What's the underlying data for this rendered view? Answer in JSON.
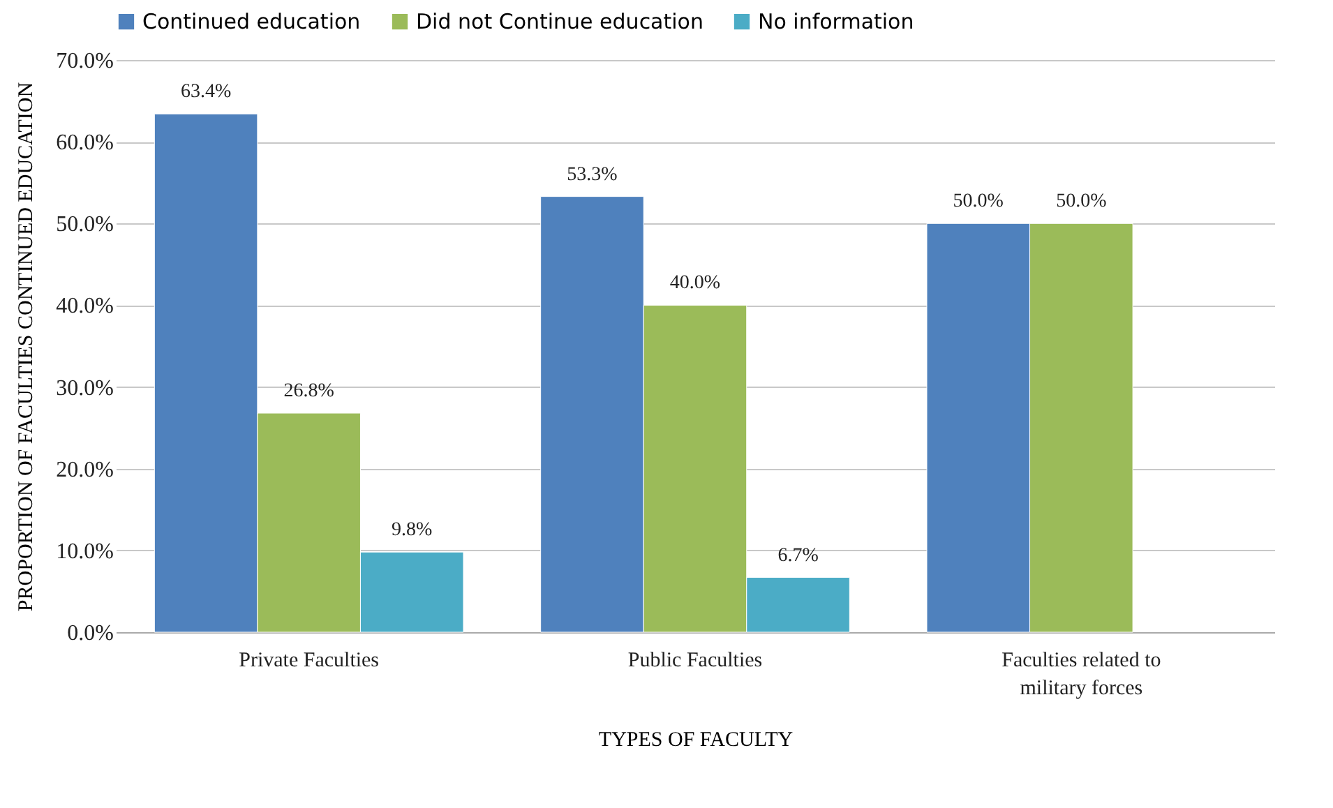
{
  "chart_data": {
    "type": "bar",
    "xlabel": "TYPES OF FACULTY",
    "ylabel": "PROPORTION OF FACULTIES CONTINUED EDUCATION",
    "categories": [
      "Private Faculties",
      "Public Faculties",
      "Faculties related to military forces"
    ],
    "series": [
      {
        "name": "Continued education",
        "color": "#4f81bd",
        "values": [
          63.4,
          53.3,
          50.0
        ],
        "value_labels": [
          "63.4%",
          "53.3%",
          "50.0%"
        ]
      },
      {
        "name": "Did not Continue education",
        "color": "#9bbb59",
        "values": [
          26.8,
          40.0,
          50.0
        ],
        "value_labels": [
          "26.8%",
          "40.0%",
          "50.0%"
        ]
      },
      {
        "name": "No information",
        "color": "#4bacc6",
        "values": [
          9.8,
          6.7,
          null
        ],
        "value_labels": [
          "9.8%",
          "6.7%",
          null
        ]
      }
    ],
    "ylim": [
      0,
      70
    ],
    "yticks": [
      {
        "value": 0,
        "label": "0.0%"
      },
      {
        "value": 10,
        "label": "10.0%"
      },
      {
        "value": 20,
        "label": "20.0%"
      },
      {
        "value": 30,
        "label": "30.0%"
      },
      {
        "value": 40,
        "label": "40.0%"
      },
      {
        "value": 50,
        "label": "50.0%"
      },
      {
        "value": 60,
        "label": "60.0%"
      },
      {
        "value": 70,
        "label": "70.0%"
      }
    ],
    "grid": "y",
    "legend": "top"
  }
}
